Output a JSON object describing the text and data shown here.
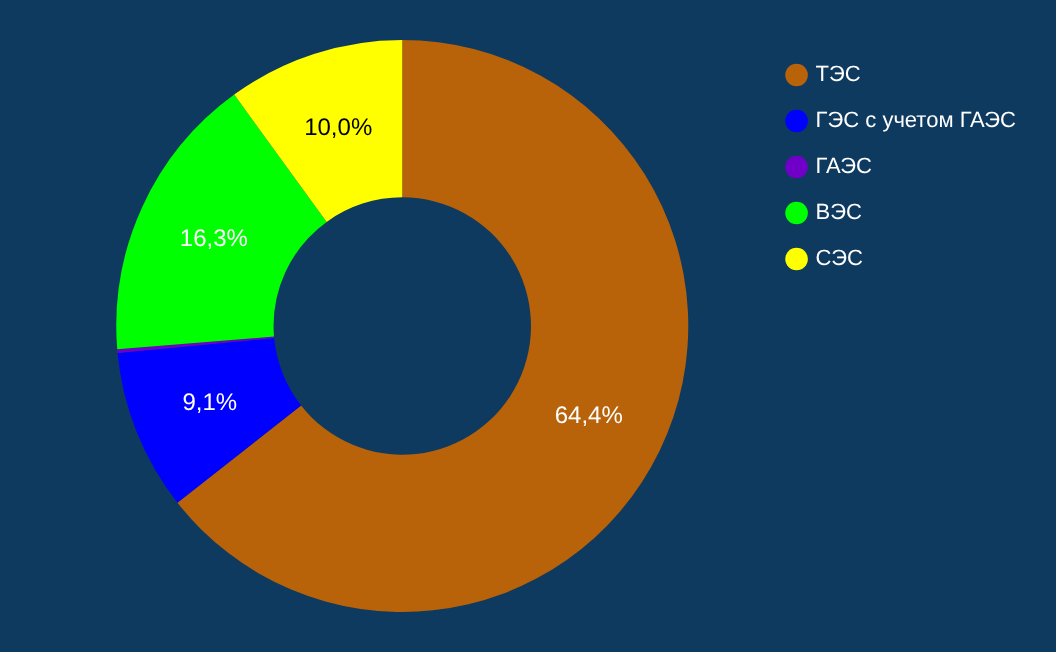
{
  "chart_data": {
    "type": "donut",
    "categories": [
      "ТЭС",
      "ГЭС с учетом ГАЭС",
      "ГАЭС",
      "ВЭС",
      "СЭС"
    ],
    "values": [
      64.4,
      9.1,
      0.2,
      16.3,
      10.0
    ],
    "value_labels": [
      "64,4%",
      "9,1%",
      null,
      "16,3%",
      "10,0%"
    ],
    "colors": [
      "#b8620a",
      "#0000ff",
      "#7000c8",
      "#00ff00",
      "#ffff00"
    ],
    "legend": "top right"
  }
}
